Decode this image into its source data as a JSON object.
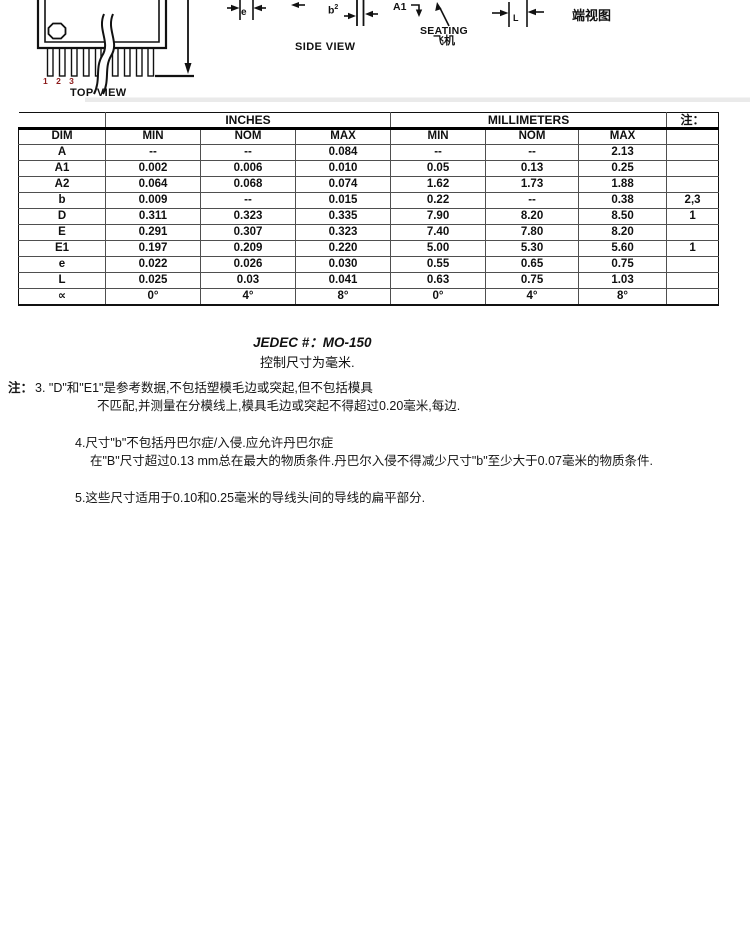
{
  "drawing": {
    "top_view": "TOP VIEW",
    "side_view": "SIDE VIEW",
    "end_view": "端视图",
    "seating": "SEATING",
    "seating_cn": "飞机",
    "pin_numbers": "1 2 3",
    "dim_e": "e",
    "dim_b": "b",
    "dim_b_note": "2",
    "dim_a1": "A1",
    "dim_l": "L"
  },
  "table": {
    "inches_header": "INCHES",
    "millimeters_header": "MILLIMETERS",
    "note_header": "注：",
    "columns": [
      "DIM",
      "MIN",
      "NOM",
      "MAX",
      "MIN",
      "NOM",
      "MAX",
      ""
    ],
    "rows": [
      [
        "A",
        "--",
        "--",
        "0.084",
        "--",
        "--",
        "2.13",
        ""
      ],
      [
        "A1",
        "0.002",
        "0.006",
        "0.010",
        "0.05",
        "0.13",
        "0.25",
        ""
      ],
      [
        "A2",
        "0.064",
        "0.068",
        "0.074",
        "1.62",
        "1.73",
        "1.88",
        ""
      ],
      [
        "b",
        "0.009",
        "--",
        "0.015",
        "0.22",
        "--",
        "0.38",
        "2,3"
      ],
      [
        "D",
        "0.311",
        "0.323",
        "0.335",
        "7.90",
        "8.20",
        "8.50",
        "1"
      ],
      [
        "E",
        "0.291",
        "0.307",
        "0.323",
        "7.40",
        "7.80",
        "8.20",
        ""
      ],
      [
        "E1",
        "0.197",
        "0.209",
        "0.220",
        "5.00",
        "5.30",
        "5.60",
        "1"
      ],
      [
        "e",
        "0.022",
        "0.026",
        "0.030",
        "0.55",
        "0.65",
        "0.75",
        ""
      ],
      [
        "L",
        "0.025",
        "0.03",
        "0.041",
        "0.63",
        "0.75",
        "1.03",
        ""
      ],
      [
        "∝",
        "0°",
        "4°",
        "8°",
        "0°",
        "4°",
        "8°",
        ""
      ]
    ]
  },
  "footer": {
    "jedec": "JEDEC #：MO-150",
    "control_dim": "控制尺寸为毫米."
  },
  "notes": {
    "prefix": "注：",
    "note3_line1": "3. \"D\"和\"E1\"是参考数据,不包括塑模毛边或突起,但不包括模具",
    "note3_line2": "不匹配,并测量在分模线上,模具毛边或突起不得超过0.20毫米,每边.",
    "note4_line1": "4.尺寸\"b\"不包括丹巴尔症/入侵.应允许丹巴尔症",
    "note4_line2": "在\"B\"尺寸超过0.13 mm总在最大的物质条件.丹巴尔入侵不得减少尺寸\"b\"至少大于0.07毫米的物质条件.",
    "note5": "5.这些尺寸适用于0.10和0.25毫米的导线头间的导线的扁平部分."
  },
  "colors": {
    "pin_number_red": "#8b1a1a",
    "line_black": "#111111",
    "scan_band_gray": "#eaeaea"
  }
}
